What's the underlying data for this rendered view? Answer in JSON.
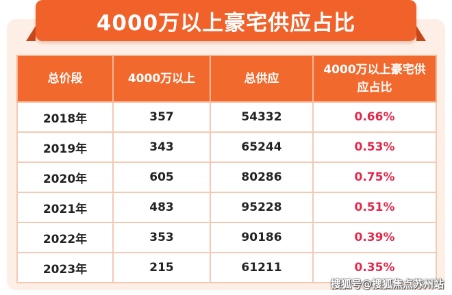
{
  "title": "4000万以上豪宅供应占比",
  "watermark": "搜狐号@搜狐焦点苏州站",
  "chart_data": {
    "type": "table",
    "columns": [
      "总价段",
      "4000万以上",
      "总供应",
      "4000万以上豪宅供应占比"
    ],
    "rows": [
      [
        "2018年",
        "357",
        "54332",
        "0.66%"
      ],
      [
        "2019年",
        "343",
        "65244",
        "0.53%"
      ],
      [
        "2020年",
        "605",
        "80286",
        "0.75%"
      ],
      [
        "2021年",
        "483",
        "95228",
        "0.51%"
      ],
      [
        "2022年",
        "353",
        "90186",
        "0.39%"
      ],
      [
        "2023年",
        "215",
        "61211",
        "0.35%"
      ]
    ]
  },
  "colors": {
    "accent": "#f0622a",
    "header": "#f2692e",
    "ratio_text": "#e2284b",
    "card_bg": "#fdeee6"
  }
}
